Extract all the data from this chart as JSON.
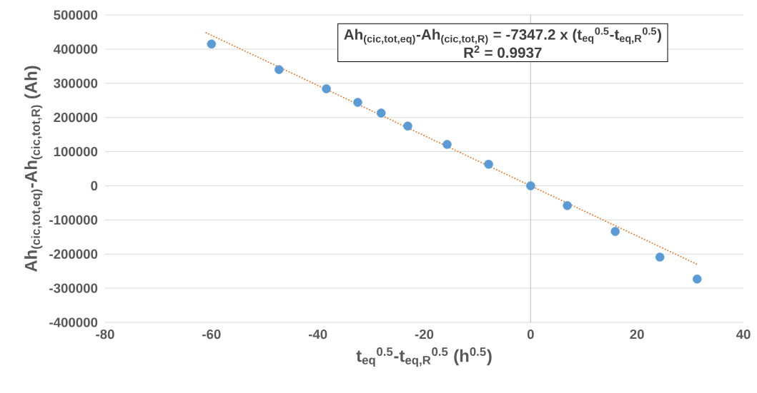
{
  "chart_data": {
    "type": "scatter",
    "xlabel": "t$_{eq}$$^{0.5}$-t$_{eq,R}$$^{0.5}$ (h$^{0.5}$)",
    "ylabel": "Ah$_{(cic,tot,eq)}$-Ah$_{(cic,tot,R)}$  (Ah)",
    "annotations": [
      "Ah$_{(cic,tot,eq)}$-Ah$_{(cic,tot,R)}$ = -7347.2 x (t$_{eq}$$^{0.5}$-t$_{eq,R}$$^{0.5}$)",
      "R$^{2}$ = 0.9937"
    ],
    "series": [
      {
        "color": "#5b9bd5",
        "marker": "circle",
        "x": [
          -60,
          -47.3,
          -38.4,
          -32.5,
          -28.1,
          -23.1,
          -15.7,
          -7.9,
          0,
          6.9,
          15.9,
          24.3,
          31.3
        ],
        "values": [
          415000,
          340000,
          284000,
          244000,
          213000,
          175000,
          121000,
          63000,
          0,
          -58000,
          -134000,
          -209000,
          -273000
        ]
      },
      {
        "type": "line",
        "color": "#ed7d31",
        "line_style": "dotted",
        "marker": "none",
        "x": [
          -61,
          31.3
        ],
        "values": [
          448000,
          -230000
        ]
      }
    ],
    "xlim": [
      -80,
      40
    ],
    "xticks": [
      -80,
      -60,
      -40,
      -20,
      0,
      20,
      40
    ],
    "ylim": [
      -400000,
      500000
    ],
    "yticks": [
      -400000,
      -300000,
      -200000,
      -100000,
      0,
      100000,
      200000,
      300000,
      400000,
      500000
    ],
    "grid": "y",
    "ref_lines": [
      {
        "axis": "x",
        "value": 0,
        "color": "#bfbfbf"
      }
    ]
  }
}
